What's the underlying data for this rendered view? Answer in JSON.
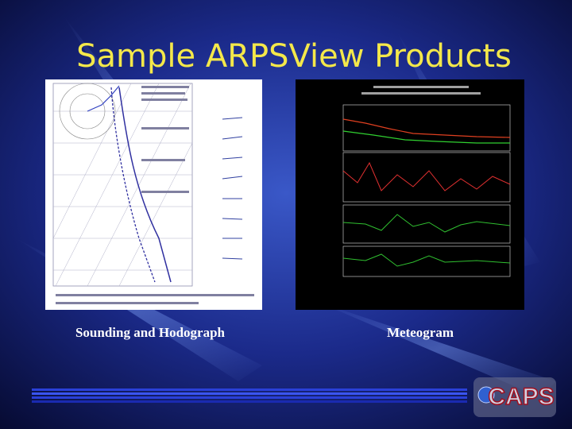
{
  "slide": {
    "title": "Sample ARPSView Products",
    "panels": [
      {
        "caption": "Sounding and Hodograph"
      },
      {
        "caption": "Meteogram"
      }
    ],
    "logo": "CAPS"
  }
}
